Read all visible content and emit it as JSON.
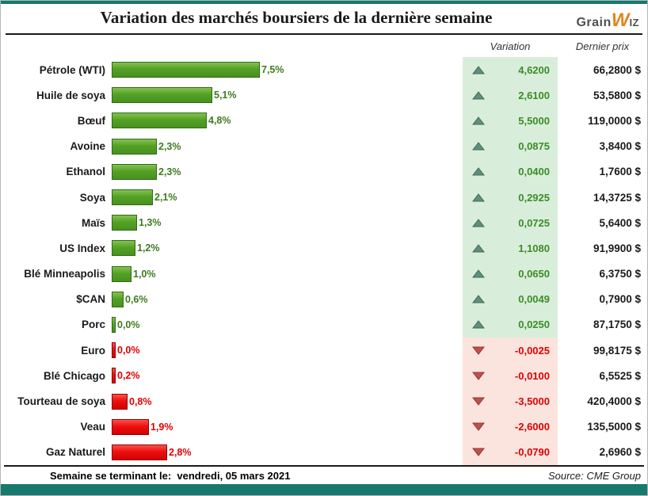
{
  "header": {
    "title": "Variation des marchés boursiers de la dernière semaine",
    "logo": {
      "grain": "Grain",
      "w": "W",
      "iz": "IZ"
    }
  },
  "columns": {
    "variation": "Variation",
    "price": "Dernier prix"
  },
  "footer": {
    "left": "Semaine se terminant le:  vendredi, 05 mars 2021",
    "right": "Source: CME Group"
  },
  "colors": {
    "accent_teal": "#17796d",
    "bar_positive": "#57a327",
    "bar_negative": "#ee1111",
    "variation_positive_bg": "#d8eedb",
    "variation_negative_bg": "#fbe4de",
    "positive_text": "#3d8c26",
    "negative_text": "#e00000",
    "up_arrow": "#5f8f7c",
    "down_arrow": "#c0504d",
    "logo_orange": "#e0861f"
  },
  "chart_data": {
    "type": "bar",
    "orientation": "horizontal",
    "title": "Variation des marchés boursiers de la dernière semaine",
    "xlabel": "",
    "ylabel": "",
    "max_pct": 7.5,
    "legend": "none",
    "columns": [
      "Variation",
      "Dernier prix"
    ],
    "rows": [
      {
        "label": "Pétrole (WTI)",
        "pct_label": "7,5%",
        "pct": 7.5,
        "direction": "up",
        "variation": "4,6200",
        "price": "66,2800 $"
      },
      {
        "label": "Huile de soya",
        "pct_label": "5,1%",
        "pct": 5.1,
        "direction": "up",
        "variation": "2,6100",
        "price": "53,5800 $"
      },
      {
        "label": "Bœuf",
        "pct_label": "4,8%",
        "pct": 4.8,
        "direction": "up",
        "variation": "5,5000",
        "price": "119,0000 $"
      },
      {
        "label": "Avoine",
        "pct_label": "2,3%",
        "pct": 2.3,
        "direction": "up",
        "variation": "0,0875",
        "price": "3,8400 $"
      },
      {
        "label": "Ethanol",
        "pct_label": "2,3%",
        "pct": 2.3,
        "direction": "up",
        "variation": "0,0400",
        "price": "1,7600 $"
      },
      {
        "label": "Soya",
        "pct_label": "2,1%",
        "pct": 2.1,
        "direction": "up",
        "variation": "0,2925",
        "price": "14,3725 $"
      },
      {
        "label": "Maïs",
        "pct_label": "1,3%",
        "pct": 1.3,
        "direction": "up",
        "variation": "0,0725",
        "price": "5,6400 $"
      },
      {
        "label": "US Index",
        "pct_label": "1,2%",
        "pct": 1.2,
        "direction": "up",
        "variation": "1,1080",
        "price": "91,9900 $"
      },
      {
        "label": "Blé Minneapolis",
        "pct_label": "1,0%",
        "pct": 1.0,
        "direction": "up",
        "variation": "0,0650",
        "price": "6,3750 $"
      },
      {
        "label": "$CAN",
        "pct_label": "0,6%",
        "pct": 0.6,
        "direction": "up",
        "variation": "0,0049",
        "price": "0,7900 $"
      },
      {
        "label": "Porc",
        "pct_label": "0,0%",
        "pct": 0.0,
        "direction": "up",
        "variation": "0,0250",
        "price": "87,1750 $"
      },
      {
        "label": "Euro",
        "pct_label": "0,0%",
        "pct": 0.0,
        "direction": "down",
        "variation": "-0,0025",
        "price": "99,8175 $"
      },
      {
        "label": "Blé Chicago",
        "pct_label": "0,2%",
        "pct": 0.2,
        "direction": "down",
        "variation": "-0,0100",
        "price": "6,5525 $"
      },
      {
        "label": "Tourteau de soya",
        "pct_label": "0,8%",
        "pct": 0.8,
        "direction": "down",
        "variation": "-3,5000",
        "price": "420,4000 $"
      },
      {
        "label": "Veau",
        "pct_label": "1,9%",
        "pct": 1.9,
        "direction": "down",
        "variation": "-2,6000",
        "price": "135,5000 $"
      },
      {
        "label": "Gaz Naturel",
        "pct_label": "2,8%",
        "pct": 2.8,
        "direction": "down",
        "variation": "-0,0790",
        "price": "2,6960 $"
      }
    ]
  }
}
